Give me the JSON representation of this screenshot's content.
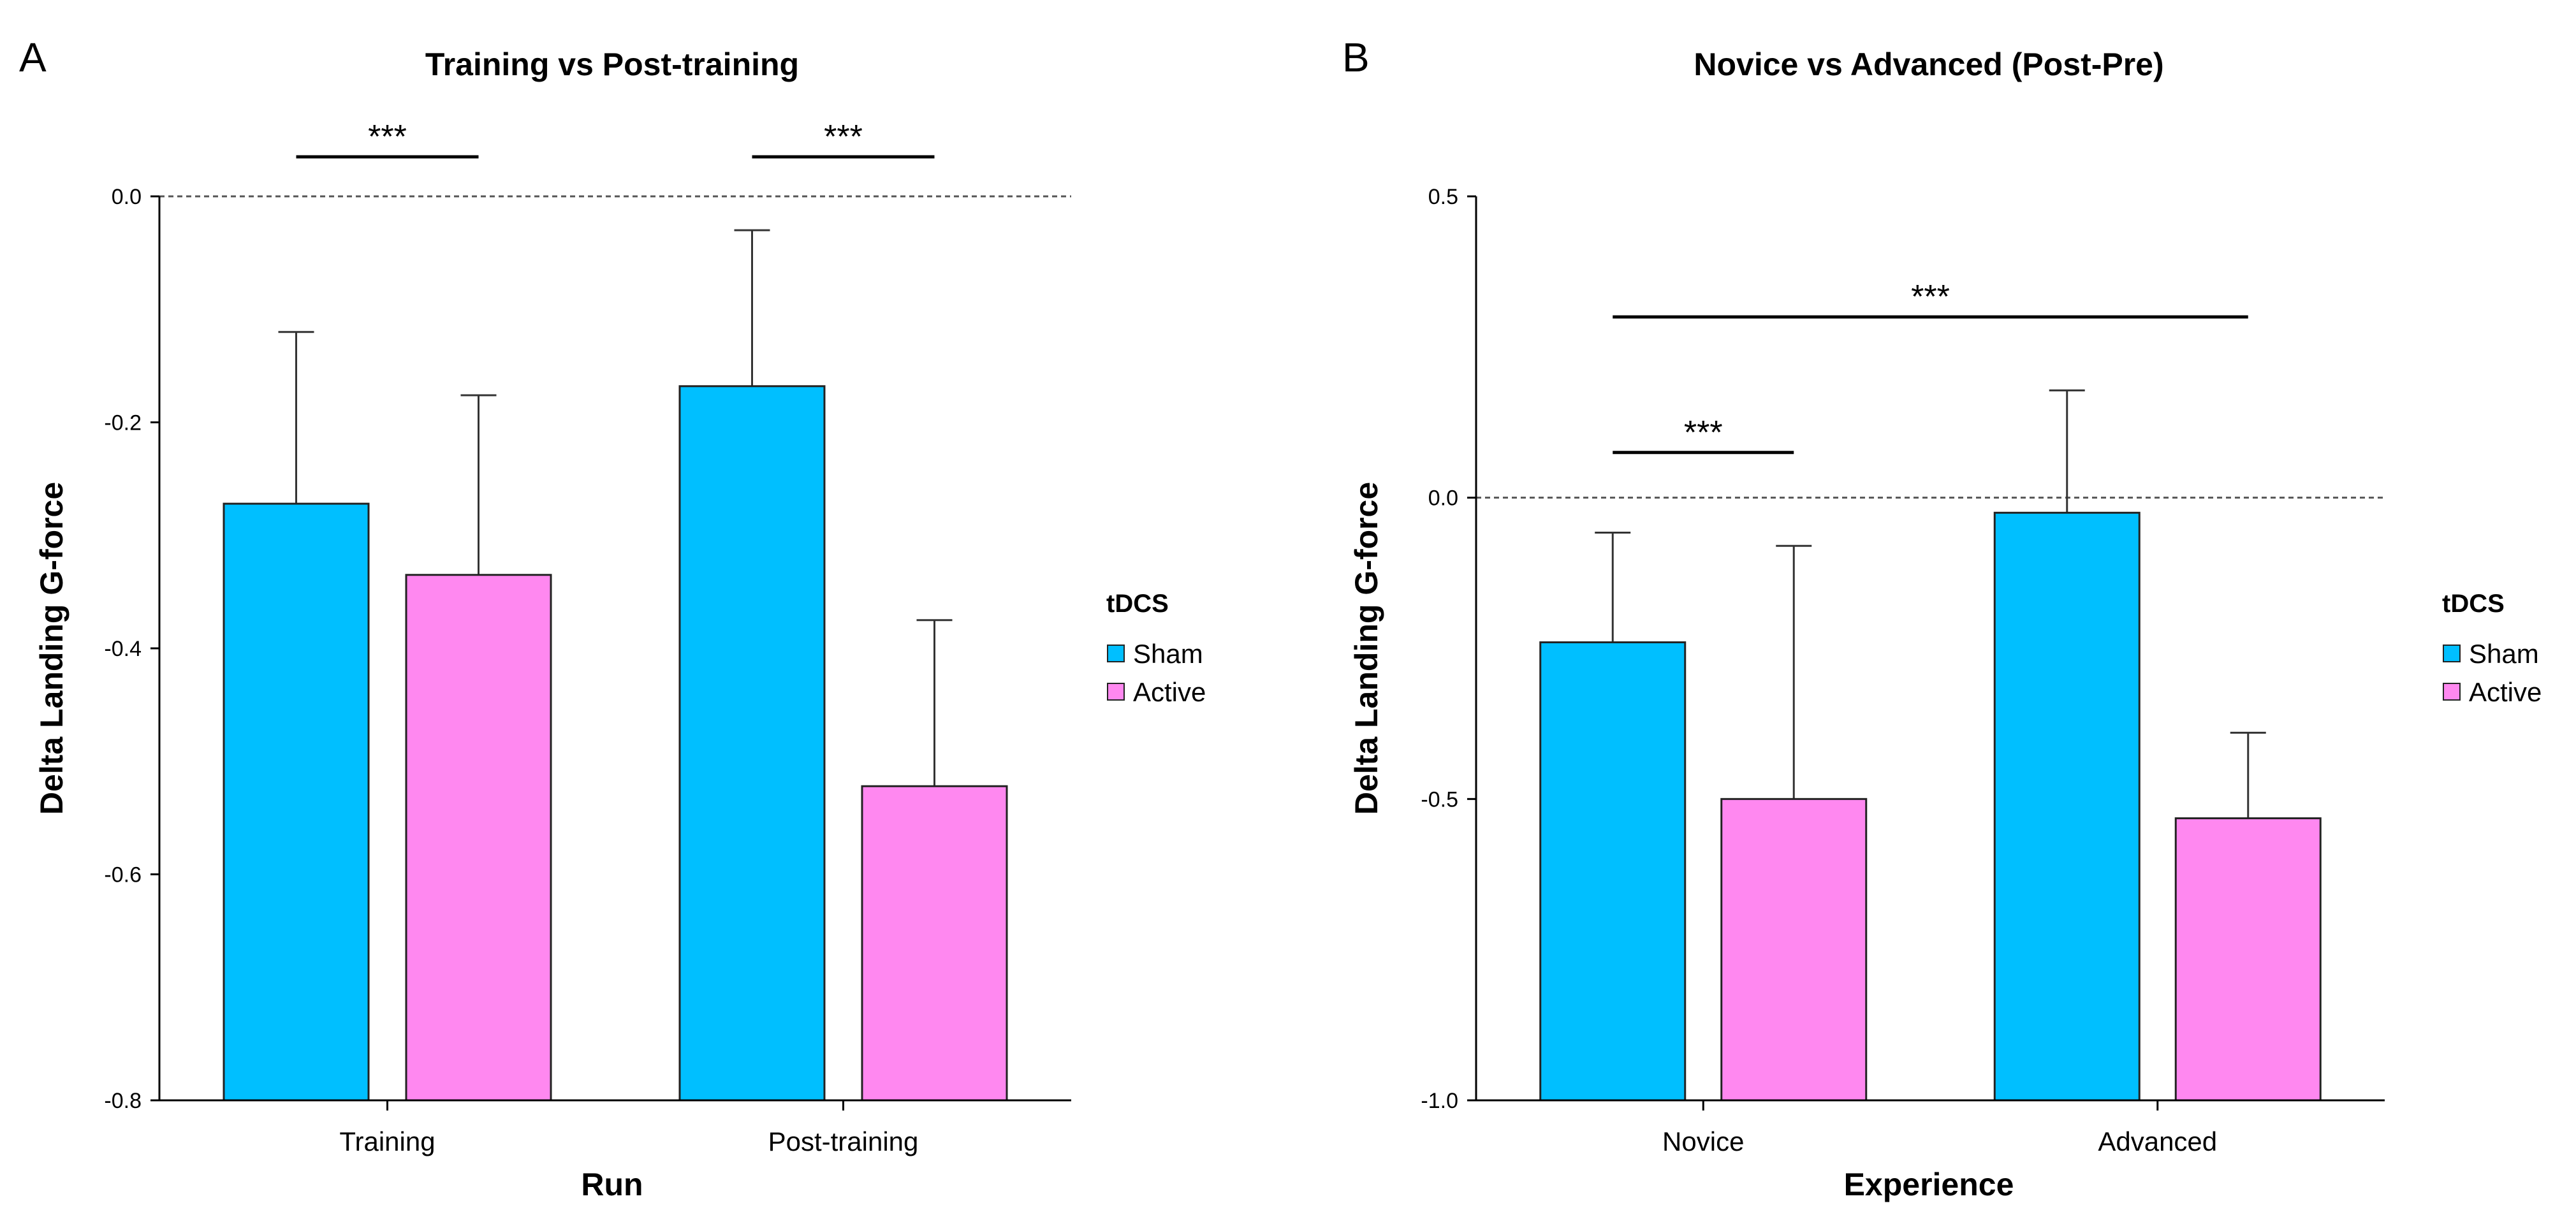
{
  "chart_data": [
    {
      "panel_label": "A",
      "type": "bar",
      "title": "Training vs Post-training",
      "xlabel": "Run",
      "ylabel": "Delta Landing G-force",
      "categories": [
        "Training",
        "Post-training"
      ],
      "ylim": [
        -0.8,
        0.0
      ],
      "yticks": [
        0.0,
        -0.2,
        -0.4,
        -0.6,
        -0.8
      ],
      "ytick_labels": [
        "0.0",
        "-0.2",
        "-0.4",
        "-0.6",
        "-0.8"
      ],
      "reference_line": 0.0,
      "grid": false,
      "legend": {
        "title": "tDCS",
        "position": "right"
      },
      "series": [
        {
          "name": "Sham",
          "color": "#00BFFF",
          "values": [
            -0.272,
            -0.168
          ],
          "error_upper": [
            -0.12,
            -0.03
          ]
        },
        {
          "name": "Active",
          "color": "#FF88F0",
          "values": [
            -0.335,
            -0.522
          ],
          "error_upper": [
            -0.176,
            -0.375
          ]
        }
      ],
      "significance": [
        {
          "label": "***",
          "from_category": 0,
          "to_category": 0,
          "y": 0.035
        },
        {
          "label": "***",
          "from_category": 1,
          "to_category": 1,
          "y": 0.035
        }
      ]
    },
    {
      "panel_label": "B",
      "type": "bar",
      "title": "Novice vs Advanced (Post-Pre)",
      "xlabel": "Experience",
      "ylabel": "Delta Landing G-force",
      "categories": [
        "Novice",
        "Advanced"
      ],
      "ylim": [
        -1.0,
        0.5
      ],
      "yticks": [
        0.5,
        0.0,
        -0.5,
        -1.0
      ],
      "ytick_labels": [
        "0.5",
        "0.0",
        "-0.5",
        "-1.0"
      ],
      "reference_line": 0.0,
      "grid": false,
      "legend": {
        "title": "tDCS",
        "position": "right"
      },
      "series": [
        {
          "name": "Sham",
          "color": "#00BFFF",
          "values": [
            -0.24,
            -0.025
          ],
          "error_upper": [
            -0.058,
            0.178
          ]
        },
        {
          "name": "Active",
          "color": "#FF88F0",
          "values": [
            -0.5,
            -0.532
          ],
          "error_upper": [
            -0.08,
            -0.39
          ]
        }
      ],
      "significance": [
        {
          "label": "***",
          "from_category": 0,
          "to_category": 0,
          "y": 0.075
        },
        {
          "label": "***",
          "from_category": 0,
          "to_category": 1,
          "y": 0.3
        }
      ]
    }
  ]
}
